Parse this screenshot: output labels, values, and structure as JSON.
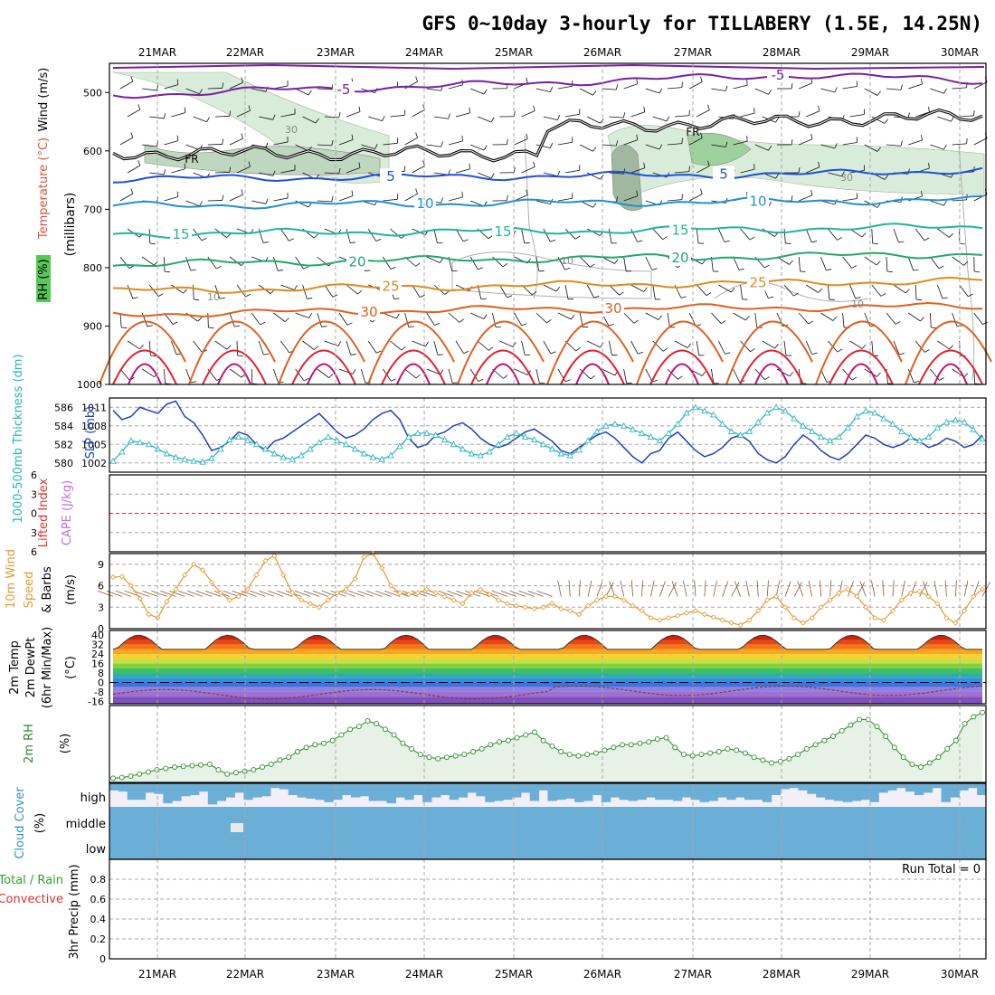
{
  "title": "GFS 0~10day 3-hourly for TILLABERY (1.5E, 14.25N)",
  "dates": [
    "21MAR",
    "22MAR",
    "23MAR",
    "24MAR",
    "25MAR",
    "26MAR",
    "27MAR",
    "28MAR",
    "29MAR",
    "30MAR"
  ],
  "colors": {
    "rh_fill": "#d9ecd9",
    "rh_dark": "#9fb89f",
    "freezing": "#000000",
    "t_minus5": "#7a1fa2",
    "t5": "#1f4fd8",
    "t10": "#1e90d6",
    "t15": "#1fb5a0",
    "t20": "#22a86a",
    "t25": "#e08a1e",
    "t30": "#e0601e",
    "t35": "#e02030",
    "t40": "#c8106e",
    "slp_line": "#2040c0",
    "thickness_line": "#30b8c0",
    "lifted_zero": "#e03030",
    "wind10": "#e89a30",
    "barb": "#000000",
    "rh2m_line": "#2e8b2e",
    "rh2m_fill": "#e6f2e6",
    "cloud": "#6baed6",
    "cloud_bg": "#f2eff7"
  },
  "chart_data": [
    {
      "name": "upper-air",
      "type": "contour",
      "ylabel_parts": [
        "Wind (m/s)",
        "Temperature (°C)",
        "RH (%)",
        "(millibars)"
      ],
      "yaxis": {
        "ticks": [
          500,
          600,
          700,
          800,
          900,
          1000
        ],
        "range": [
          450,
          1000
        ]
      },
      "temperature_contours": [
        {
          "label": "-5",
          "levels_mb": [
            505,
            495,
            488,
            478,
            470,
            480
          ]
        },
        {
          "label": "5",
          "levels_mb": [
            648,
            646,
            644,
            642,
            640,
            632
          ]
        },
        {
          "label": "10",
          "levels_mb": [
            694,
            692,
            690,
            688,
            686,
            684
          ]
        },
        {
          "label": "15",
          "levels_mb": [
            743,
            740,
            738,
            736,
            733,
            730
          ]
        },
        {
          "label": "20",
          "levels_mb": [
            795,
            790,
            786,
            783,
            780,
            776
          ]
        },
        {
          "label": "25",
          "levels_mb": [
            840,
            836,
            832,
            828,
            826,
            822
          ]
        },
        {
          "label": "30",
          "levels_mb": [
            880,
            876,
            872,
            870,
            868,
            866
          ]
        }
      ],
      "freezing_label": "FR",
      "rh_labels": [
        "30",
        "10"
      ]
    },
    {
      "name": "slp-thickness",
      "type": "line",
      "ylabel_left": "1000-500mb Thickness (dm)",
      "ylabel_right": "SLP (mb)",
      "left_ticks": [
        580,
        582,
        584,
        586
      ],
      "right_ticks": [
        1002,
        1005,
        1008,
        1011
      ],
      "series": [
        {
          "name": "SLP",
          "values": [
            1010.5,
            1009,
            1009.5,
            1011,
            1010.5,
            1010,
            1011.5,
            1012,
            1009.5,
            1008.5,
            1006.5,
            1004,
            1004.5,
            1005.5,
            1007,
            1006.5,
            1005,
            1004,
            1005.5,
            1006,
            1007,
            1008,
            1009,
            1010,
            1008.5,
            1007,
            1006,
            1006.5,
            1007.5,
            1009,
            1010,
            1010.5,
            1009,
            1006,
            1004.5,
            1005,
            1006.5,
            1007,
            1008,
            1008.5,
            1007.5,
            1006,
            1005,
            1004.5,
            1005,
            1006,
            1007,
            1007.5,
            1006.5,
            1005.5,
            1004,
            1003.5,
            1004.5,
            1005.5,
            1006.5,
            1007,
            1006,
            1004.5,
            1003,
            1002,
            1003.5,
            1004,
            1006,
            1007,
            1005.5,
            1004,
            1003,
            1003.5,
            1004.5,
            1006,
            1006.5,
            1005.5,
            1003.5,
            1002.5,
            1002,
            1003,
            1005,
            1006.5,
            1005.5,
            1004,
            1003,
            1002.5,
            1003.5,
            1005,
            1006.5,
            1006,
            1005,
            1004.5,
            1005,
            1006,
            1005.5,
            1004.5,
            1005,
            1006,
            1005.5,
            1004.5,
            1005,
            1006.5
          ]
        },
        {
          "name": "Thickness",
          "values": [
            580.2,
            581.2,
            582.4,
            582.2,
            582,
            581.5,
            581,
            580.6,
            580.4,
            580.2,
            580.1,
            580.5,
            581.5,
            582.5,
            582.8,
            582.4,
            582,
            581.5,
            581,
            580.6,
            580.4,
            580.8,
            581.5,
            582.2,
            582.8,
            582.4,
            582,
            581.5,
            581,
            580.6,
            580.4,
            580.8,
            581.8,
            582.8,
            583.2,
            583.2,
            583,
            582.5,
            582,
            581.5,
            581,
            580.8,
            581.2,
            582,
            582.8,
            583.2,
            582.8,
            582.5,
            582,
            581.5,
            581,
            580.8,
            581.4,
            582.4,
            583.4,
            584,
            584.2,
            584,
            583.6,
            583.2,
            582.8,
            582.4,
            583.2,
            584.2,
            585.4,
            586,
            585.6,
            585.2,
            584.2,
            583.4,
            583,
            583.4,
            584.4,
            585.4,
            586,
            585.6,
            584.8,
            584,
            583.4,
            582.8,
            582.4,
            582.8,
            583.8,
            585,
            585.6,
            585.4,
            584.8,
            584.2,
            583.4,
            582.8,
            582.4,
            582.8,
            583.8,
            584.4,
            584.6,
            584.4,
            583.6,
            582.6
          ]
        }
      ]
    },
    {
      "name": "lifted-cape",
      "type": "line",
      "ylabel_left": "Lifted Index",
      "ylabel_right": "CAPE (J/kg)",
      "ticks": [
        -6,
        -3,
        0,
        3,
        6
      ],
      "tick_labels": [
        "6",
        "3",
        "0",
        "3",
        "6"
      ]
    },
    {
      "name": "wind10m",
      "type": "line",
      "ylabel": "10m Wind Speed & Barbs (m/s)",
      "ticks": [
        0,
        3,
        6,
        9
      ],
      "ylim": [
        0,
        10.5
      ],
      "series": [
        {
          "name": "10m Wind Speed",
          "values": [
            7.2,
            7.3,
            6,
            4.2,
            2,
            1.5,
            3.8,
            5.5,
            7.5,
            9,
            8.2,
            6.5,
            5,
            4,
            4.5,
            5.5,
            7.5,
            9.5,
            10.2,
            7.5,
            5,
            4,
            3.5,
            3,
            4,
            5,
            5.5,
            7,
            10,
            10.5,
            8.5,
            6,
            5,
            4.8,
            5,
            5.5,
            5,
            4.5,
            4,
            3.5,
            5,
            5.5,
            4.8,
            4,
            3.5,
            3.2,
            3,
            2.8,
            3,
            3.5,
            2.8,
            2.5,
            2,
            3.2,
            4,
            4.5,
            4.5,
            4,
            3.2,
            2.5,
            1.5,
            1.2,
            1.5,
            1.8,
            2.2,
            2.5,
            2,
            1.6,
            1.2,
            0.8,
            0.5,
            1.2,
            2.5,
            4,
            4.5,
            3,
            1.5,
            0.8,
            1.5,
            3,
            4,
            5,
            5.5,
            4.5,
            3,
            1.5,
            1.2,
            2.5,
            4,
            5,
            5.2,
            4.5,
            3.5,
            1.5,
            0.8,
            2.5,
            4.5,
            5.5
          ]
        }
      ]
    },
    {
      "name": "temp2m",
      "type": "area",
      "ylabel": "2m Temp 2m DewPt (6hr Min/Max) (°C)",
      "ticks": [
        40,
        32,
        24,
        16,
        8,
        0,
        -8,
        -16
      ],
      "tick_labels": [
        "40",
        "32",
        "24",
        "16",
        "8",
        "0",
        "-8",
        "-16"
      ],
      "ylim": [
        -18,
        44
      ]
    },
    {
      "name": "rh2m",
      "type": "line",
      "ylabel": "2m RH (%)",
      "series": [
        {
          "name": "2m RH",
          "values": [
            3,
            3.5,
            4.5,
            6,
            7.5,
            9,
            10,
            11,
            11.5,
            12,
            12.5,
            13,
            9,
            6,
            7,
            8,
            9,
            11,
            13,
            16,
            18,
            22,
            25,
            27,
            28,
            30,
            34,
            38,
            40,
            44,
            42,
            38,
            34,
            28,
            24,
            20,
            18,
            17,
            18,
            19,
            20,
            22,
            24,
            27,
            29,
            30,
            32,
            34,
            36,
            30,
            26,
            22,
            20,
            19,
            20,
            21,
            23,
            25,
            27,
            27,
            28,
            29,
            31,
            32,
            25,
            20,
            19,
            20,
            21,
            22,
            24,
            23,
            21,
            18,
            16,
            14,
            15,
            17,
            20,
            24,
            27,
            30,
            33,
            37,
            41,
            45,
            45,
            40,
            33,
            25,
            18,
            13,
            11,
            14,
            18,
            24,
            30,
            42,
            47,
            50
          ]
        }
      ]
    },
    {
      "name": "cloud-cover",
      "type": "area",
      "ylabel": "Cloud Cover (%)",
      "levels": [
        "high",
        "middle",
        "low"
      ],
      "high": [
        30,
        35,
        70,
        70,
        40,
        45,
        85,
        75,
        55,
        50,
        35,
        90,
        75,
        60,
        40,
        70,
        60,
        55,
        20,
        25,
        50,
        60,
        65,
        70,
        80,
        70,
        50,
        60,
        55,
        75,
        75,
        85,
        60,
        70,
        50,
        80,
        60,
        50,
        70,
        60,
        40,
        55,
        80,
        75,
        70,
        60,
        40,
        75,
        30,
        75,
        70,
        65,
        80,
        75,
        50,
        80,
        60,
        70,
        75,
        70,
        60,
        70,
        70,
        75,
        60,
        70,
        80,
        75,
        60,
        70,
        60,
        70,
        70,
        80,
        50,
        25,
        20,
        30,
        45,
        60,
        70,
        75,
        80,
        75,
        70,
        80,
        40,
        30,
        20,
        35,
        50,
        40,
        20,
        80,
        60,
        30,
        20,
        50
      ],
      "middle": [
        100,
        100,
        100,
        100,
        100,
        100,
        100,
        100,
        100,
        100,
        100,
        100,
        100,
        100,
        100,
        100,
        100,
        100,
        100,
        100,
        100,
        100,
        100,
        100,
        100,
        100,
        100,
        100,
        100,
        100,
        100,
        100,
        100,
        100,
        100,
        100,
        100,
        100,
        100,
        100,
        100,
        100,
        100,
        100,
        100,
        100,
        100,
        100,
        100,
        100,
        100,
        100,
        100,
        100,
        100,
        100,
        100,
        100,
        100,
        100,
        100,
        100,
        100,
        100,
        100,
        100,
        100,
        100,
        100,
        100,
        100,
        100,
        100,
        100,
        100,
        100,
        100,
        100,
        100,
        100,
        100,
        100,
        100,
        100,
        100,
        100,
        100,
        100,
        100,
        100,
        100,
        100,
        100,
        100,
        100,
        100,
        100,
        100
      ]
    },
    {
      "name": "precip",
      "type": "bar",
      "ylabel": "3hr Precip (mm)",
      "side_labels": [
        "Total / Rain",
        "Convective"
      ],
      "ticks": [
        0,
        0.2,
        0.4,
        0.6,
        0.8
      ],
      "ylim": [
        0,
        1.0
      ],
      "run_total": "Run Total = 0",
      "values": []
    }
  ]
}
